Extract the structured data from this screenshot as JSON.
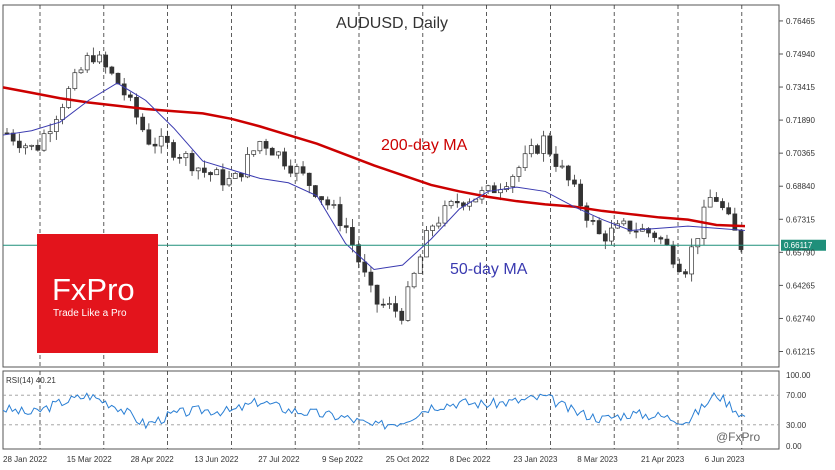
{
  "chart_data": [
    {
      "type": "candlestick",
      "title": "AUDUSD, Daily",
      "y_ticks": [
        "0.76465",
        "0.74940",
        "0.73415",
        "0.71890",
        "0.70365",
        "0.68840",
        "0.67315",
        "0.65790",
        "0.64265",
        "0.62740",
        "0.61215"
      ],
      "ylim": [
        0.605,
        0.772
      ],
      "x_ticks": [
        "28 Jan 2022",
        "15 Mar 2022",
        "28 Apr 2022",
        "13 Jun 2022",
        "27 Jul 2022",
        "9 Sep 2022",
        "25 Oct 2022",
        "8 Dec 2022",
        "23 Jan 2023",
        "8 Mar 2023",
        "21 Apr 2023",
        "6 Jun 2023"
      ],
      "current_price": "0.66117",
      "current_price_value": 0.66117,
      "grid": "vertical dashed",
      "series": [
        {
          "name": "200-day MA",
          "color": "#cc0000",
          "values": [
            0.734,
            0.7315,
            0.729,
            0.727,
            0.7255,
            0.724,
            0.723,
            0.722,
            0.7195,
            0.716,
            0.712,
            0.708,
            0.703,
            0.698,
            0.6935,
            0.689,
            0.686,
            0.6835,
            0.6815,
            0.68,
            0.679,
            0.677,
            0.6755,
            0.674,
            0.673,
            0.6705,
            0.67
          ]
        },
        {
          "name": "50-day MA",
          "color": "#3a3ab0",
          "values": [
            0.712,
            0.714,
            0.718,
            0.728,
            0.736,
            0.728,
            0.715,
            0.7,
            0.696,
            0.692,
            0.69,
            0.684,
            0.662,
            0.65,
            0.652,
            0.664,
            0.678,
            0.686,
            0.688,
            0.686,
            0.679,
            0.673,
            0.668,
            0.669,
            0.67,
            0.669,
            0.668
          ]
        },
        {
          "name": "Close",
          "color": "#333333",
          "values": [
            0.713,
            0.705,
            0.728,
            0.75,
            0.735,
            0.71,
            0.705,
            0.695,
            0.69,
            0.71,
            0.699,
            0.686,
            0.67,
            0.635,
            0.63,
            0.67,
            0.682,
            0.685,
            0.695,
            0.71,
            0.688,
            0.665,
            0.67,
            0.666,
            0.65,
            0.686,
            0.6612
          ]
        }
      ]
    },
    {
      "type": "line",
      "title": "RSI(14) 40.21",
      "y_ticks": [
        "100.00",
        "70.00",
        "30.00",
        "0.00"
      ],
      "ylim": [
        0,
        100
      ],
      "series": [
        {
          "name": "RSI(14)",
          "color": "#2a7fd4",
          "values": [
            52,
            45,
            60,
            70,
            55,
            30,
            45,
            50,
            48,
            62,
            50,
            45,
            40,
            28,
            35,
            55,
            60,
            58,
            62,
            68,
            48,
            38,
            45,
            42,
            35,
            72,
            40.21
          ]
        }
      ]
    }
  ],
  "labels": {
    "ma200": "200-day MA",
    "ma50": "50-day MA"
  },
  "colors": {
    "logo_bg": "#e3141c",
    "price_line": "#1f8f7a",
    "ma200": "#cc0000",
    "ma50": "#3a3ab0",
    "rsi": "#2a7fd4",
    "candle": "#333333"
  },
  "logo": {
    "name": "FxPro",
    "tagline": "Trade Like a Pro"
  },
  "watermark": "@FxPro"
}
